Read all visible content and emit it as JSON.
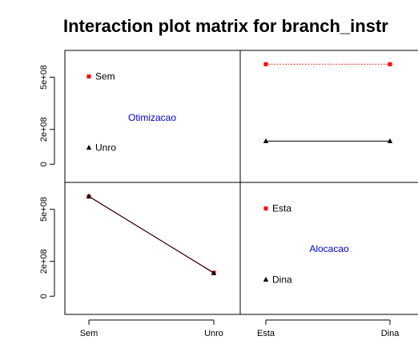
{
  "chart_data": {
    "type": "line",
    "title": "Interaction plot matrix for branch_instr",
    "ylim": [
      -100000000,
      650000000
    ],
    "y_ticks": [
      {
        "value": 0,
        "label": "0"
      },
      {
        "value": 200000000,
        "label": "2e+08"
      },
      {
        "value": 500000000,
        "label": "5e+08"
      }
    ],
    "factors": [
      {
        "name": "Otimizacao",
        "levels": [
          "Sem",
          "Unro"
        ]
      },
      {
        "name": "Alocacao",
        "levels": [
          "Esta",
          "Dina"
        ]
      }
    ],
    "panels": [
      {
        "position": "top-right",
        "x_factor": "Alocacao",
        "trace_factor": "Otimizacao",
        "series": [
          {
            "name": "Sem",
            "color": "#ff0000",
            "linestyle": "dotted",
            "marker": "square",
            "values": [
              575000000,
              575000000
            ]
          },
          {
            "name": "Unro",
            "color": "#000000",
            "linestyle": "solid",
            "marker": "triangle",
            "values": [
              133000000,
              133000000
            ]
          }
        ]
      },
      {
        "position": "bottom-left",
        "x_factor": "Otimizacao",
        "trace_factor": "Alocacao",
        "series": [
          {
            "name": "Esta",
            "color": "#ff0000",
            "linestyle": "solid",
            "marker": "square",
            "values": [
              573000000,
              135000000
            ]
          },
          {
            "name": "Dina",
            "color": "#000000",
            "linestyle": "solid",
            "marker": "triangle",
            "values": [
              575000000,
              133000000
            ]
          }
        ]
      }
    ]
  },
  "x_tick_labels": {
    "bottom_left": [
      "Sem",
      "Unro"
    ],
    "bottom_right": [
      "Esta",
      "Dina"
    ]
  },
  "diagonal": {
    "top_left": {
      "factor_label": "Otimizacao",
      "levels": [
        "Sem",
        "Unro"
      ]
    },
    "bottom_right": {
      "factor_label": "Alocacao",
      "levels": [
        "Esta",
        "Dina"
      ]
    }
  },
  "colors": {
    "level1": "#ff0000",
    "level2": "#000000",
    "factor_label": "#0000cc"
  }
}
